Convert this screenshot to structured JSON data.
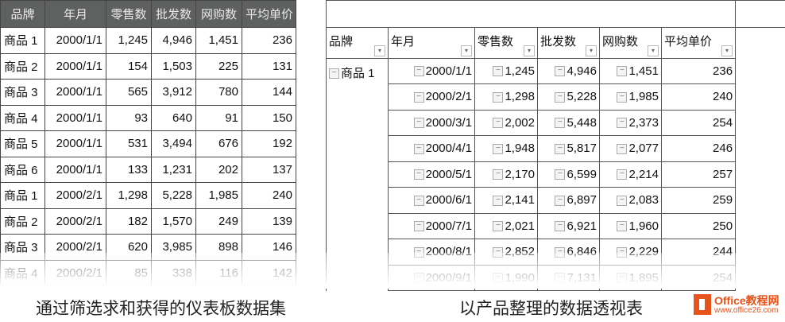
{
  "left_table": {
    "headers": [
      "品牌",
      "年月",
      "零售数",
      "批发数",
      "网购数",
      "平均单价"
    ],
    "rows": [
      [
        "商品 1",
        "2000/1/1",
        "1,245",
        "4,946",
        "1,451",
        "236"
      ],
      [
        "商品 2",
        "2000/1/1",
        "154",
        "1,503",
        "225",
        "131"
      ],
      [
        "商品 3",
        "2000/1/1",
        "565",
        "3,912",
        "780",
        "144"
      ],
      [
        "商品 4",
        "2000/1/1",
        "93",
        "640",
        "91",
        "150"
      ],
      [
        "商品 5",
        "2000/1/1",
        "531",
        "3,494",
        "676",
        "192"
      ],
      [
        "商品 6",
        "2000/1/1",
        "133",
        "1,231",
        "202",
        "137"
      ],
      [
        "商品 1",
        "2000/2/1",
        "1,298",
        "5,228",
        "1,985",
        "240"
      ],
      [
        "商品 2",
        "2000/2/1",
        "182",
        "1,570",
        "249",
        "139"
      ],
      [
        "商品 3",
        "2000/2/1",
        "620",
        "3,985",
        "898",
        "146"
      ],
      [
        "商品 4",
        "2000/2/1",
        "85",
        "338",
        "116",
        "142"
      ]
    ]
  },
  "pivot_table": {
    "headers": [
      "品牌",
      "年月",
      "零售数",
      "批发数",
      "网购数",
      "平均单价"
    ],
    "brand": "商品 1",
    "rows": [
      [
        "2000/1/1",
        "1,245",
        "4,946",
        "1,451",
        "236"
      ],
      [
        "2000/2/1",
        "1,298",
        "5,228",
        "1,985",
        "240"
      ],
      [
        "2000/3/1",
        "2,002",
        "5,448",
        "2,373",
        "254"
      ],
      [
        "2000/4/1",
        "1,948",
        "5,817",
        "2,077",
        "246"
      ],
      [
        "2000/5/1",
        "2,170",
        "6,599",
        "2,214",
        "257"
      ],
      [
        "2000/6/1",
        "2,141",
        "6,897",
        "2,083",
        "259"
      ],
      [
        "2000/7/1",
        "2,021",
        "6,921",
        "1,960",
        "250"
      ],
      [
        "2000/8/1",
        "2,852",
        "6,846",
        "2,229",
        "244"
      ],
      [
        "2000/9/1",
        "1,990",
        "7,131",
        "1,895",
        "254"
      ]
    ]
  },
  "captions": {
    "left": "通过筛选求和获得的仪表板数据集",
    "right": "以产品整理的数据透视表"
  },
  "logo": {
    "name": "Office教程网",
    "url": "www.office26.com"
  }
}
